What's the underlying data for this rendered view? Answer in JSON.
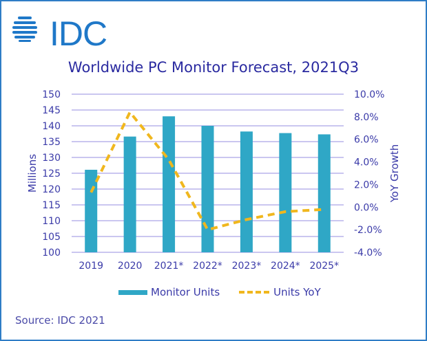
{
  "header": {
    "logo_text": "IDC"
  },
  "chart_data": {
    "type": "bar+line",
    "title": "Worldwide PC Monitor Forecast, 2021Q3",
    "categories": [
      "2019",
      "2020",
      "2021*",
      "2022*",
      "2023*",
      "2024*",
      "2025*"
    ],
    "series": [
      {
        "name": "Monitor Units",
        "type": "bar",
        "axis": "left",
        "color": "#2fa7c6",
        "values": [
          126.1,
          136.6,
          143.0,
          140.0,
          138.2,
          137.7,
          137.3
        ]
      },
      {
        "name": "Units YoY",
        "type": "line",
        "style": "dashed",
        "axis": "right",
        "color": "#f0b71e",
        "values": [
          1.3,
          8.4,
          4.2,
          -2.0,
          -1.1,
          -0.4,
          -0.2
        ]
      }
    ],
    "y_left": {
      "label": "Millions",
      "ylim": [
        100,
        150
      ],
      "ticks": [
        "150",
        "145",
        "140",
        "135",
        "130",
        "125",
        "120",
        "115",
        "110",
        "105",
        "100"
      ],
      "tick_values": [
        150,
        145,
        140,
        135,
        130,
        125,
        120,
        115,
        110,
        105,
        100
      ]
    },
    "y_right": {
      "label": "YoY Growth",
      "ylim": [
        -4.0,
        10.0
      ],
      "ticks": [
        "10.0%",
        "8.0%",
        "6.0%",
        "4.0%",
        "2.0%",
        "0.0%",
        "-2.0%",
        "-4.0%"
      ],
      "tick_values": [
        10,
        8,
        6,
        4,
        2,
        0,
        -2,
        -4
      ]
    },
    "grid": true,
    "legend_position": "bottom",
    "legend": [
      "Monitor Units",
      "Units YoY"
    ]
  },
  "footer": {
    "source": "Source: IDC 2021"
  }
}
